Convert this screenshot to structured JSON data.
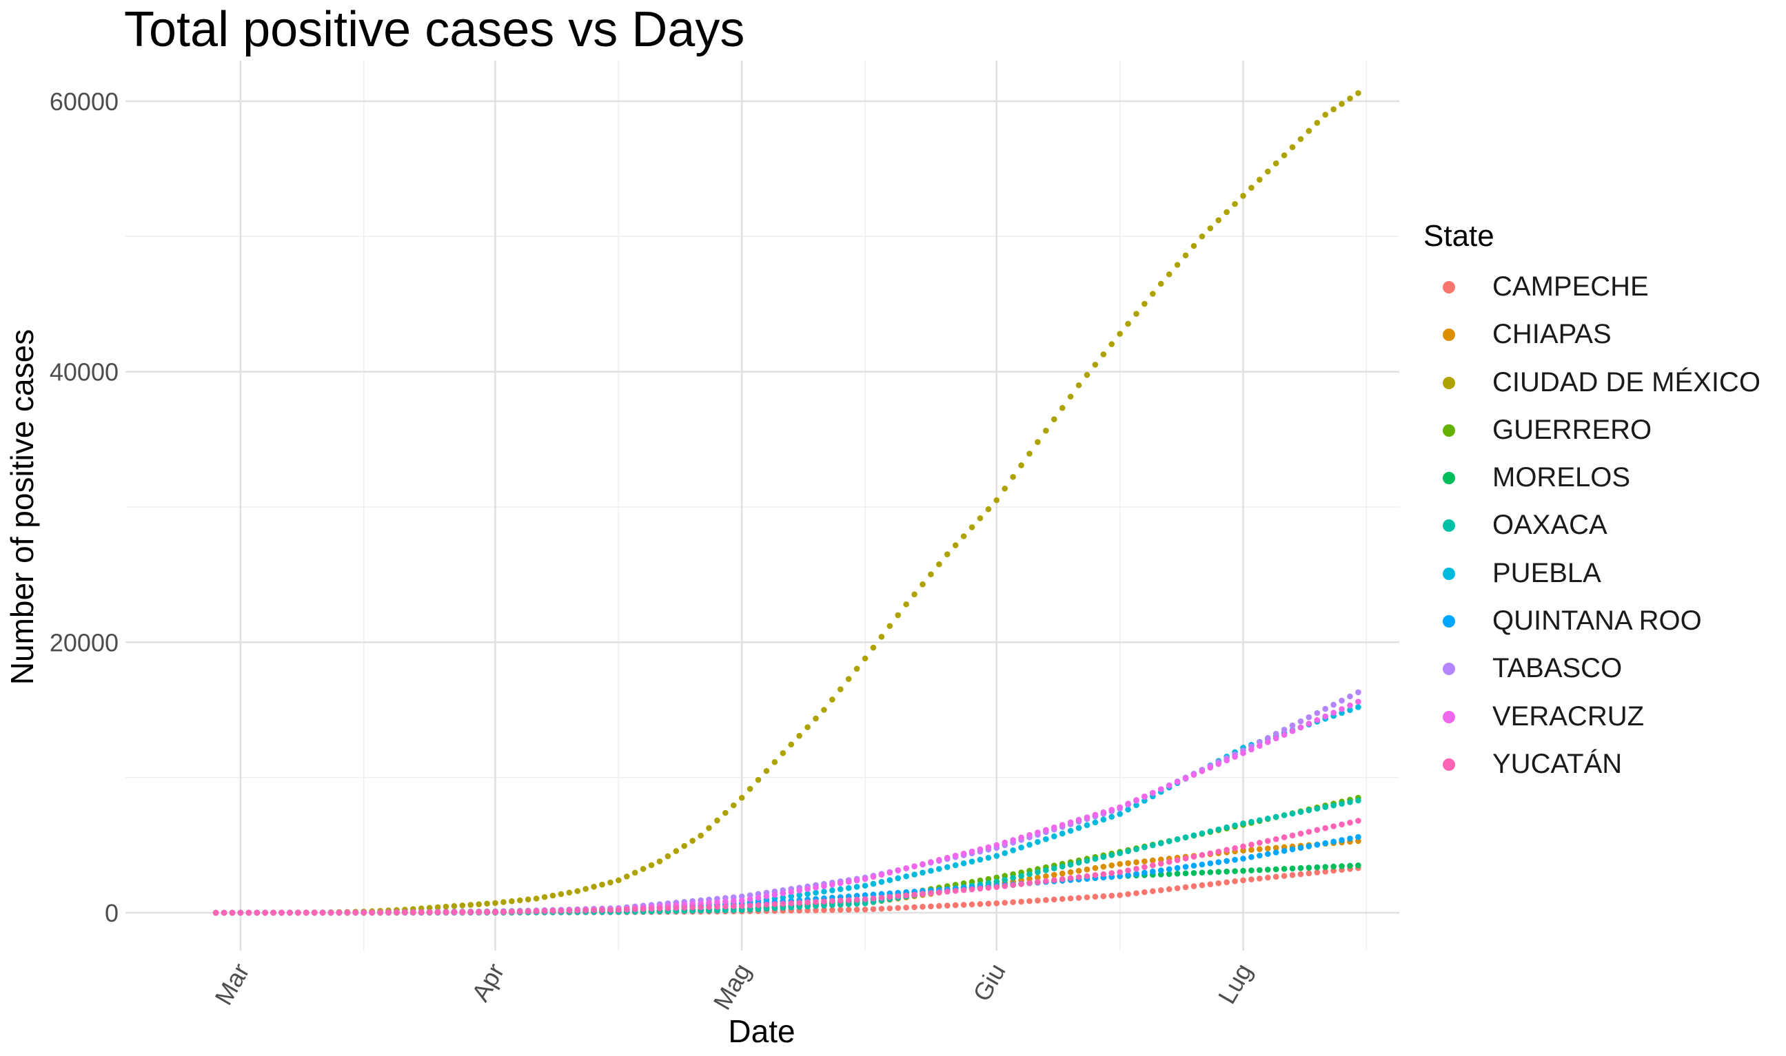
{
  "chart_data": {
    "type": "scatter",
    "title": "Total positive cases vs Days",
    "xlabel": "Date",
    "ylabel": "Number of positive cases",
    "x_range": [
      "2020-02-16",
      "2020-07-20"
    ],
    "x_ticks": [
      {
        "date": "2020-03-01",
        "label": "Mar"
      },
      {
        "date": "2020-04-01",
        "label": "Apr"
      },
      {
        "date": "2020-05-01",
        "label": "Mag"
      },
      {
        "date": "2020-06-01",
        "label": "Giu"
      },
      {
        "date": "2020-07-01",
        "label": "Lug"
      }
    ],
    "x_minor_ticks": [
      "2020-03-16",
      "2020-04-16",
      "2020-05-16",
      "2020-06-16",
      "2020-07-16"
    ],
    "ylim": [
      -2800,
      63000
    ],
    "y_ticks": [
      0,
      20000,
      40000,
      60000
    ],
    "y_minor_ticks": [
      10000,
      30000,
      50000
    ],
    "grid": true,
    "legend_title": "State",
    "legend_position": "right",
    "series": [
      {
        "name": "CAMPECHE",
        "color": "#F8766D",
        "points": [
          [
            "2020-02-27",
            0
          ],
          [
            "2020-03-16",
            3
          ],
          [
            "2020-04-01",
            15
          ],
          [
            "2020-04-16",
            40
          ],
          [
            "2020-05-01",
            100
          ],
          [
            "2020-05-16",
            240
          ],
          [
            "2020-06-01",
            700
          ],
          [
            "2020-06-16",
            1300
          ],
          [
            "2020-07-01",
            2400
          ],
          [
            "2020-07-15",
            3300
          ]
        ]
      },
      {
        "name": "CHIAPAS",
        "color": "#DB8E00",
        "points": [
          [
            "2020-02-27",
            0
          ],
          [
            "2020-03-16",
            5
          ],
          [
            "2020-04-01",
            40
          ],
          [
            "2020-04-16",
            100
          ],
          [
            "2020-05-01",
            250
          ],
          [
            "2020-05-16",
            700
          ],
          [
            "2020-06-01",
            2100
          ],
          [
            "2020-06-16",
            3600
          ],
          [
            "2020-07-01",
            4600
          ],
          [
            "2020-07-15",
            5300
          ]
        ]
      },
      {
        "name": "CIUDAD DE MÉXICO",
        "color": "#AEA200",
        "points": [
          [
            "2020-02-27",
            0
          ],
          [
            "2020-03-01",
            2
          ],
          [
            "2020-03-06",
            10
          ],
          [
            "2020-03-11",
            25
          ],
          [
            "2020-03-16",
            80
          ],
          [
            "2020-03-21",
            230
          ],
          [
            "2020-03-26",
            450
          ],
          [
            "2020-04-01",
            720
          ],
          [
            "2020-04-06",
            1050
          ],
          [
            "2020-04-11",
            1600
          ],
          [
            "2020-04-16",
            2400
          ],
          [
            "2020-04-21",
            3800
          ],
          [
            "2020-04-26",
            5700
          ],
          [
            "2020-05-01",
            8500
          ],
          [
            "2020-05-06",
            11800
          ],
          [
            "2020-05-11",
            15000
          ],
          [
            "2020-05-16",
            18800
          ],
          [
            "2020-05-21",
            22800
          ],
          [
            "2020-05-26",
            26500
          ],
          [
            "2020-06-01",
            30500
          ],
          [
            "2020-06-06",
            34800
          ],
          [
            "2020-06-11",
            39000
          ],
          [
            "2020-06-16",
            42800
          ],
          [
            "2020-06-21",
            46500
          ],
          [
            "2020-06-26",
            50000
          ],
          [
            "2020-07-01",
            53000
          ],
          [
            "2020-07-06",
            56000
          ],
          [
            "2020-07-11",
            59000
          ],
          [
            "2020-07-15",
            60600
          ]
        ]
      },
      {
        "name": "GUERRERO",
        "color": "#64B200",
        "points": [
          [
            "2020-02-27",
            0
          ],
          [
            "2020-03-16",
            5
          ],
          [
            "2020-04-01",
            20
          ],
          [
            "2020-04-16",
            80
          ],
          [
            "2020-05-01",
            250
          ],
          [
            "2020-05-16",
            900
          ],
          [
            "2020-06-01",
            2600
          ],
          [
            "2020-06-16",
            4500
          ],
          [
            "2020-07-01",
            6500
          ],
          [
            "2020-07-15",
            8500
          ]
        ]
      },
      {
        "name": "MORELOS",
        "color": "#00BD5C",
        "points": [
          [
            "2020-02-27",
            0
          ],
          [
            "2020-03-16",
            4
          ],
          [
            "2020-04-01",
            30
          ],
          [
            "2020-04-16",
            90
          ],
          [
            "2020-05-01",
            280
          ],
          [
            "2020-05-16",
            900
          ],
          [
            "2020-06-01",
            2000
          ],
          [
            "2020-06-16",
            2700
          ],
          [
            "2020-07-01",
            3100
          ],
          [
            "2020-07-15",
            3500
          ]
        ]
      },
      {
        "name": "OAXACA",
        "color": "#00C1A7",
        "points": [
          [
            "2020-02-27",
            0
          ],
          [
            "2020-03-16",
            3
          ],
          [
            "2020-04-01",
            20
          ],
          [
            "2020-04-16",
            60
          ],
          [
            "2020-05-01",
            200
          ],
          [
            "2020-05-16",
            700
          ],
          [
            "2020-06-01",
            2300
          ],
          [
            "2020-06-16",
            4400
          ],
          [
            "2020-07-01",
            6600
          ],
          [
            "2020-07-15",
            8300
          ]
        ]
      },
      {
        "name": "PUEBLA",
        "color": "#00BADE",
        "points": [
          [
            "2020-02-27",
            0
          ],
          [
            "2020-03-16",
            10
          ],
          [
            "2020-04-01",
            80
          ],
          [
            "2020-04-16",
            220
          ],
          [
            "2020-05-01",
            700
          ],
          [
            "2020-05-16",
            2000
          ],
          [
            "2020-06-01",
            4200
          ],
          [
            "2020-06-16",
            7300
          ],
          [
            "2020-07-01",
            12200
          ],
          [
            "2020-07-15",
            15200
          ]
        ]
      },
      {
        "name": "QUINTANA ROO",
        "color": "#00A6FF",
        "points": [
          [
            "2020-02-27",
            0
          ],
          [
            "2020-03-16",
            15
          ],
          [
            "2020-04-01",
            100
          ],
          [
            "2020-04-16",
            300
          ],
          [
            "2020-05-01",
            600
          ],
          [
            "2020-05-16",
            1300
          ],
          [
            "2020-06-01",
            2000
          ],
          [
            "2020-06-16",
            2700
          ],
          [
            "2020-07-01",
            4000
          ],
          [
            "2020-07-15",
            5600
          ]
        ]
      },
      {
        "name": "TABASCO",
        "color": "#B385FF",
        "points": [
          [
            "2020-02-27",
            0
          ],
          [
            "2020-03-16",
            8
          ],
          [
            "2020-04-01",
            60
          ],
          [
            "2020-04-16",
            350
          ],
          [
            "2020-05-01",
            1200
          ],
          [
            "2020-05-16",
            2600
          ],
          [
            "2020-06-01",
            4800
          ],
          [
            "2020-06-16",
            7700
          ],
          [
            "2020-07-01",
            12000
          ],
          [
            "2020-07-15",
            16300
          ]
        ]
      },
      {
        "name": "VERACRUZ",
        "color": "#EF67EB",
        "points": [
          [
            "2020-02-27",
            0
          ],
          [
            "2020-03-16",
            10
          ],
          [
            "2020-04-01",
            50
          ],
          [
            "2020-04-16",
            250
          ],
          [
            "2020-05-01",
            900
          ],
          [
            "2020-05-16",
            2500
          ],
          [
            "2020-06-01",
            5000
          ],
          [
            "2020-06-16",
            7800
          ],
          [
            "2020-07-01",
            11800
          ],
          [
            "2020-07-15",
            15600
          ]
        ]
      },
      {
        "name": "YUCATÁN",
        "color": "#FF63B6",
        "points": [
          [
            "2020-02-27",
            0
          ],
          [
            "2020-03-16",
            10
          ],
          [
            "2020-04-01",
            80
          ],
          [
            "2020-04-16",
            220
          ],
          [
            "2020-05-01",
            500
          ],
          [
            "2020-05-16",
            1000
          ],
          [
            "2020-06-01",
            1900
          ],
          [
            "2020-06-16",
            3000
          ],
          [
            "2020-07-01",
            4900
          ],
          [
            "2020-07-15",
            6800
          ]
        ]
      }
    ]
  }
}
